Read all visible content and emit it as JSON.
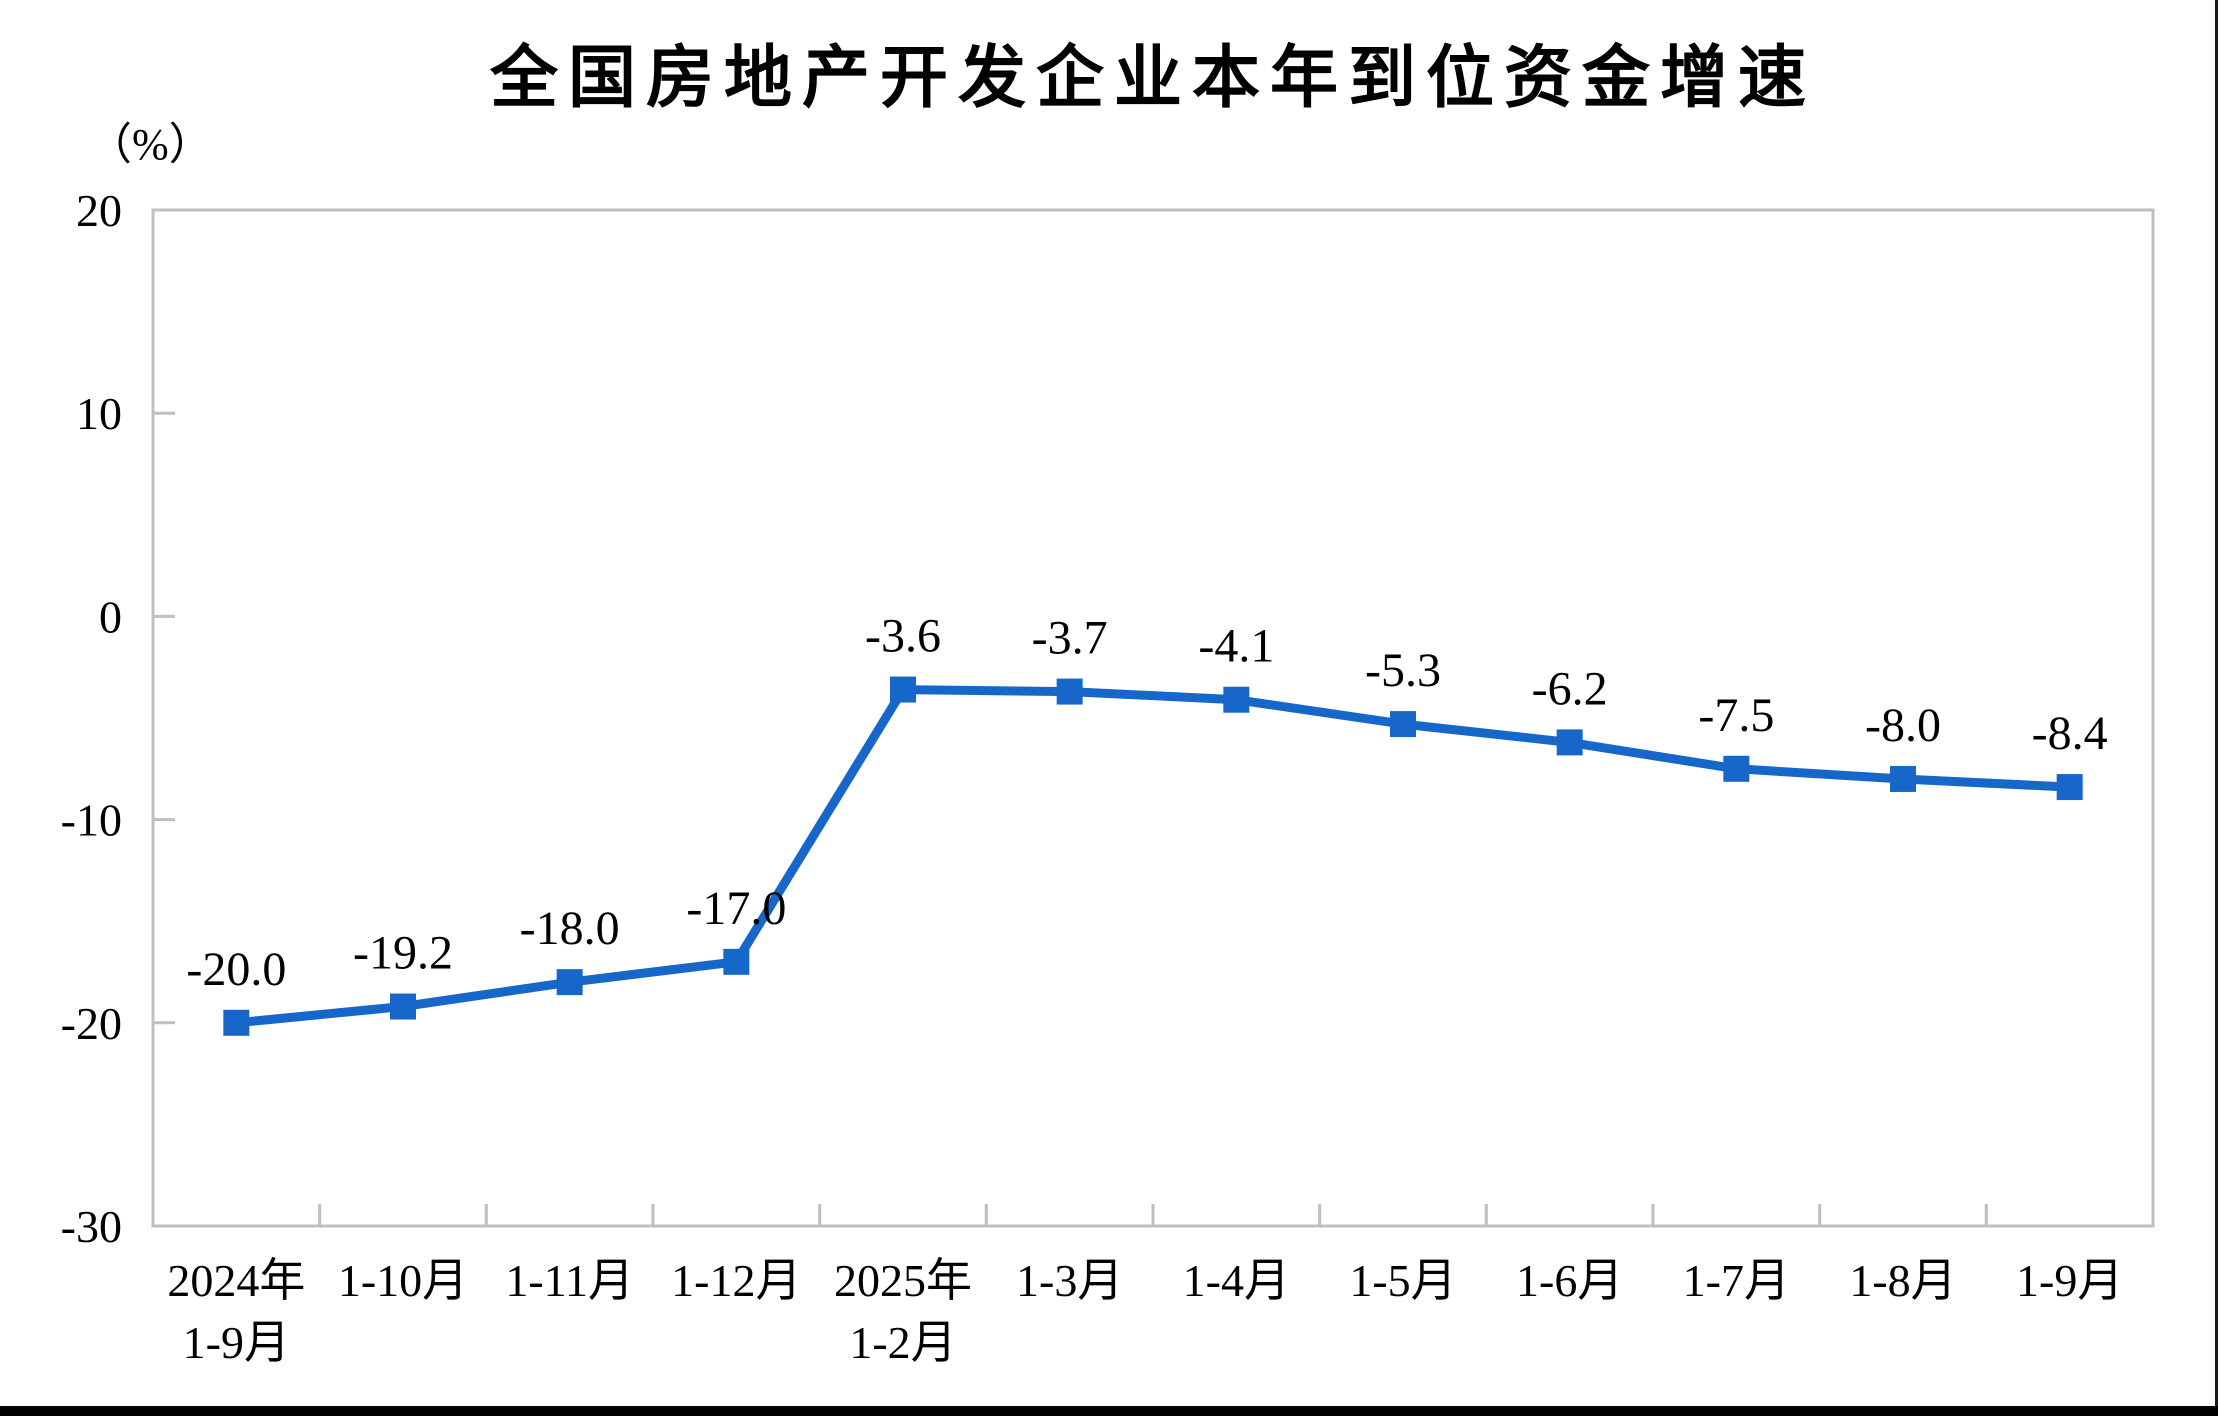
{
  "page": {
    "background": "#ffffff",
    "bottom_bar_color": "#000000",
    "right_edge_color": "#1a1a1a"
  },
  "chart_data": {
    "type": "line",
    "title": "全国房地产开发企业本年到位资金增速",
    "unit_label": "（%）",
    "categories": [
      [
        "2024年",
        "1-9月"
      ],
      [
        "1-10月"
      ],
      [
        "1-11月"
      ],
      [
        "1-12月"
      ],
      [
        "2025年",
        "1-2月"
      ],
      [
        "1-3月"
      ],
      [
        "1-4月"
      ],
      [
        "1-5月"
      ],
      [
        "1-6月"
      ],
      [
        "1-7月"
      ],
      [
        "1-8月"
      ],
      [
        "1-9月"
      ]
    ],
    "values": [
      -20.0,
      -19.2,
      -18.0,
      -17.0,
      -3.6,
      -3.7,
      -4.1,
      -5.3,
      -6.2,
      -7.5,
      -8.0,
      -8.4
    ],
    "point_labels": [
      "-20.0",
      "-19.2",
      "-18.0",
      "-17.0",
      "-3.6",
      "-3.7",
      "-4.1",
      "-5.3",
      "-6.2",
      "-7.5",
      "-8.0",
      "-8.4"
    ],
    "ylim": [
      -30,
      20
    ],
    "yticks": [
      20,
      10,
      0,
      -10,
      -20,
      -30
    ],
    "ytick_labels": [
      "20",
      "10",
      "0",
      "-10",
      "-20",
      "-30"
    ],
    "grid": false,
    "legend": "none",
    "line_color": "#1667C9",
    "marker": "square",
    "frame_color": "#BFBFBF",
    "text_color": "#000000"
  }
}
